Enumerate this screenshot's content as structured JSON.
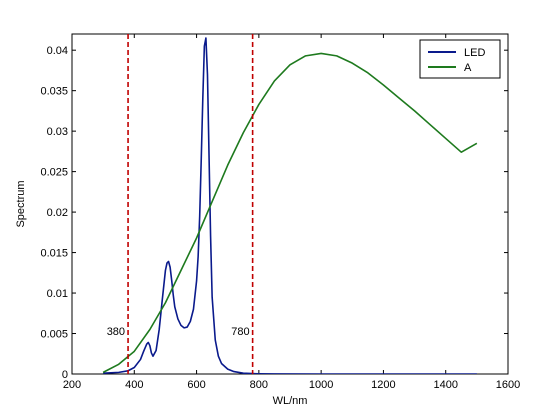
{
  "chart_data": {
    "type": "line",
    "title": "",
    "xlabel": "WL/nm",
    "ylabel": "Spectrum",
    "xlim": [
      200,
      1600
    ],
    "ylim": [
      0,
      0.042
    ],
    "xticks": [
      200,
      400,
      600,
      800,
      1000,
      1200,
      1400,
      1600
    ],
    "xtick_labels": [
      "200",
      "400",
      "600",
      "800",
      "1000",
      "1200",
      "1400",
      "1600"
    ],
    "yticks": [
      0,
      0.005,
      0.01,
      0.015,
      0.02,
      0.025,
      0.03,
      0.035,
      0.04
    ],
    "ytick_labels": [
      "0",
      "0.005",
      "0.01",
      "0.015",
      "0.02",
      "0.025",
      "0.03",
      "0.035",
      "0.04"
    ],
    "grid": false,
    "legend_position": "top-right",
    "series": [
      {
        "name": "LED",
        "color": "#0a1a8c",
        "x": [
          300,
          350,
          380,
          400,
          420,
          430,
          440,
          445,
          450,
          455,
          460,
          470,
          480,
          490,
          500,
          505,
          510,
          515,
          520,
          525,
          530,
          540,
          550,
          560,
          570,
          580,
          590,
          600,
          605,
          610,
          615,
          620,
          625,
          630,
          635,
          640,
          645,
          650,
          660,
          670,
          680,
          700,
          720,
          750,
          780,
          800,
          850,
          1000,
          1200,
          1500
        ],
        "y": [
          0.0001,
          0.0002,
          0.0004,
          0.0008,
          0.0018,
          0.0028,
          0.0037,
          0.0039,
          0.0035,
          0.0026,
          0.0022,
          0.0029,
          0.0055,
          0.0092,
          0.0128,
          0.0137,
          0.0139,
          0.0132,
          0.0116,
          0.0098,
          0.0083,
          0.0068,
          0.006,
          0.0057,
          0.0058,
          0.0065,
          0.008,
          0.0115,
          0.0145,
          0.0195,
          0.0265,
          0.034,
          0.0405,
          0.0415,
          0.037,
          0.027,
          0.017,
          0.0095,
          0.0042,
          0.0022,
          0.0013,
          0.0006,
          0.0003,
          0.0001,
          5e-05,
          3e-05,
          1e-05,
          0,
          0,
          0
        ]
      },
      {
        "name": "A",
        "color": "#1e7a1e",
        "x": [
          300,
          350,
          400,
          450,
          500,
          550,
          600,
          650,
          700,
          750,
          800,
          850,
          900,
          950,
          1000,
          1050,
          1100,
          1150,
          1200,
          1250,
          1300,
          1350,
          1400,
          1450,
          1500
        ],
        "y": [
          0.0002,
          0.0012,
          0.0028,
          0.0055,
          0.0088,
          0.0128,
          0.0168,
          0.0213,
          0.0258,
          0.0298,
          0.0333,
          0.0362,
          0.0382,
          0.0393,
          0.0396,
          0.0393,
          0.0384,
          0.0372,
          0.0357,
          0.0341,
          0.0325,
          0.0308,
          0.0291,
          0.0274,
          0.0285
        ]
      }
    ],
    "vlines": [
      {
        "x": 380,
        "color": "#c00000",
        "style": "dashed",
        "label": "380"
      },
      {
        "x": 780,
        "color": "#c00000",
        "style": "dashed",
        "label": "780"
      }
    ]
  }
}
